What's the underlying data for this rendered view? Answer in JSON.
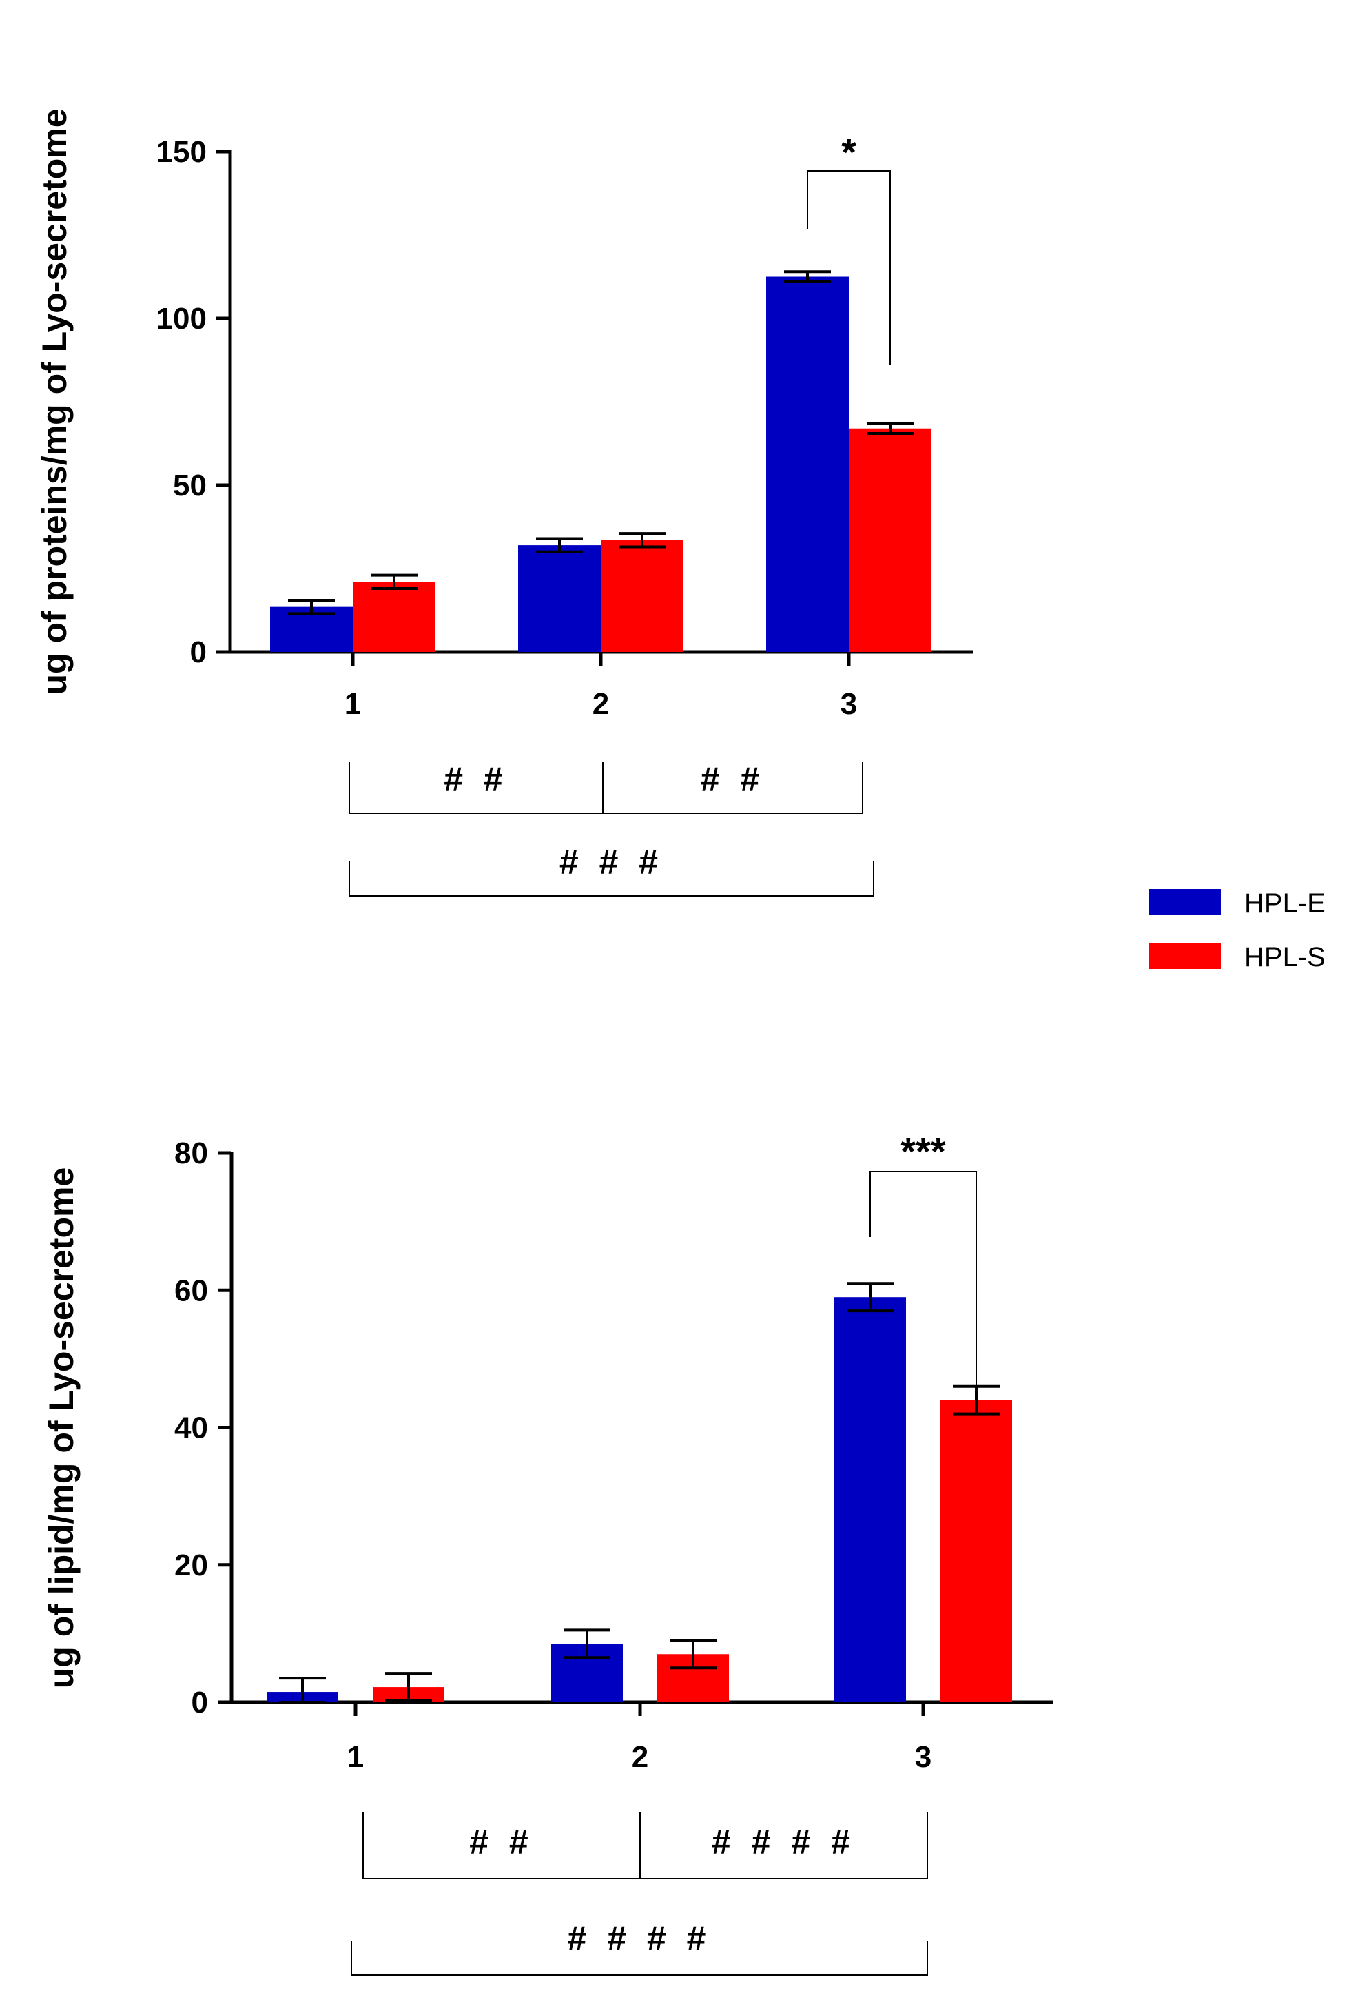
{
  "chart_data": [
    {
      "type": "bar",
      "ylabel": "ug of proteins/mg of Lyo-secretome",
      "xlabel": "",
      "categories": [
        "1",
        "2",
        "3"
      ],
      "ylim": [
        0,
        150
      ],
      "yticks": [
        "0",
        "50",
        "100",
        "150"
      ],
      "series": [
        {
          "name": "HPL-E",
          "color": "#0000c0",
          "values": [
            13.5,
            32,
            112.5
          ],
          "errors": [
            2,
            2,
            1.5
          ]
        },
        {
          "name": "HPL-S",
          "color": "#ff0000",
          "values": [
            21,
            33.5,
            67
          ],
          "errors": [
            2,
            2,
            1.5
          ]
        }
      ],
      "significance": {
        "category": "3",
        "label": "*"
      },
      "comparisons": [
        {
          "from": "1",
          "to": "2",
          "label": "##"
        },
        {
          "from": "2",
          "to": "3",
          "label": "##"
        },
        {
          "from": "1",
          "to": "3",
          "label": "###"
        }
      ]
    },
    {
      "type": "bar",
      "ylabel": "ug of lipid/mg of Lyo-secretome",
      "xlabel": "",
      "categories": [
        "1",
        "2",
        "3"
      ],
      "ylim": [
        0,
        80
      ],
      "yticks": [
        "0",
        "20",
        "40",
        "60",
        "80"
      ],
      "series": [
        {
          "name": "HPL-E",
          "color": "#0000c0",
          "values": [
            1.5,
            8.5,
            59
          ],
          "errors": [
            2,
            2,
            2
          ]
        },
        {
          "name": "HPL-S",
          "color": "#ff0000",
          "values": [
            2.2,
            7,
            44
          ],
          "errors": [
            2,
            2,
            2
          ]
        }
      ],
      "significance": {
        "category": "3",
        "label": "***"
      },
      "comparisons": [
        {
          "from": "1",
          "to": "2",
          "label": "##"
        },
        {
          "from": "2",
          "to": "3",
          "label": "####"
        },
        {
          "from": "1",
          "to": "3",
          "label": "####"
        }
      ]
    }
  ],
  "legend": [
    {
      "name": "HPL-E",
      "color": "#0000c0"
    },
    {
      "name": "HPL-S",
      "color": "#ff0000"
    }
  ]
}
